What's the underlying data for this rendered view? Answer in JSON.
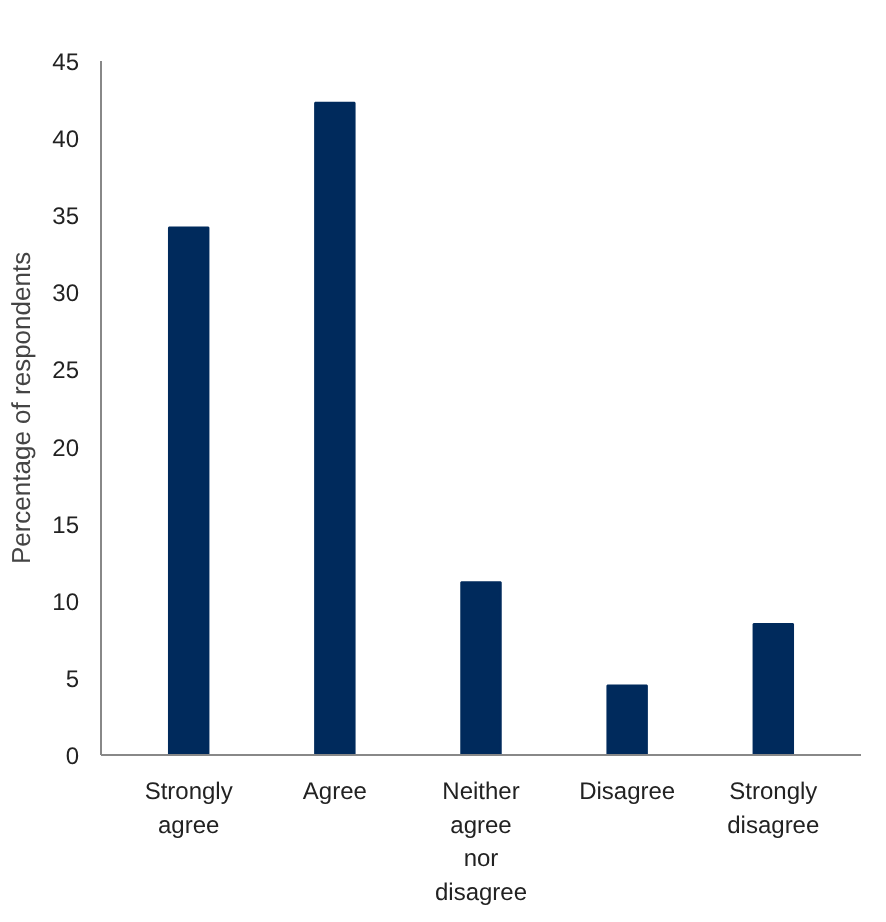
{
  "chart_data": {
    "type": "bar",
    "ylabel": "Percentage of respondents",
    "categories": [
      "Strongly\nagree",
      "Agree",
      "Neither\nagree\nnor\ndisagree",
      "Disagree",
      "Strongly\ndisagree"
    ],
    "values": [
      34.2,
      42.3,
      11.2,
      4.5,
      8.5
    ],
    "color": "#002a5c",
    "ylim": [
      0,
      45
    ],
    "yticks": [
      0,
      5,
      10,
      15,
      20,
      25,
      30,
      35,
      40,
      45
    ],
    "grid": false
  }
}
